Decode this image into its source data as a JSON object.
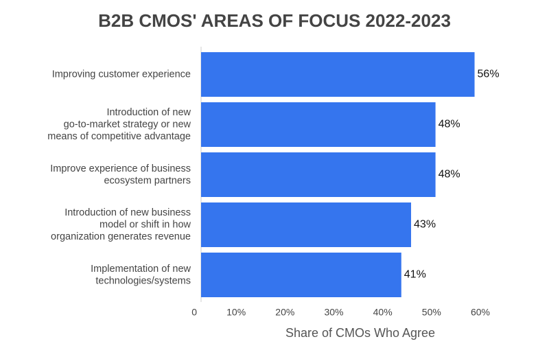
{
  "chart_data": {
    "type": "barh",
    "title": "B2B CMOS' AREAS OF FOCUS 2022-2023",
    "x_label": "Share of CMOs Who Agree",
    "categories": [
      "Improving customer experience",
      "Introduction of new\ngo-to-market strategy or new\nmeans of competitive advantage",
      "Improve experience of business\necosystem partners",
      "Introduction of new business\nmodel or shift in how\norganization generates revenue",
      "Implementation of new\ntechnologies/systems"
    ],
    "values": [
      56,
      48,
      48,
      43,
      41
    ],
    "value_labels": [
      "56%",
      "48%",
      "48%",
      "43%",
      "41%"
    ],
    "color": "#3575ee",
    "xlim": [
      0,
      60
    ],
    "xticks": [
      0,
      {
        "value": 10,
        "label": "10%"
      },
      {
        "value": 20,
        "label": "20%"
      },
      {
        "value": 30,
        "label": "30%"
      },
      {
        "value": 40,
        "label": "40%"
      },
      {
        "value": 50,
        "label": "50%"
      },
      {
        "value": 60,
        "label": "60%"
      }
    ]
  }
}
